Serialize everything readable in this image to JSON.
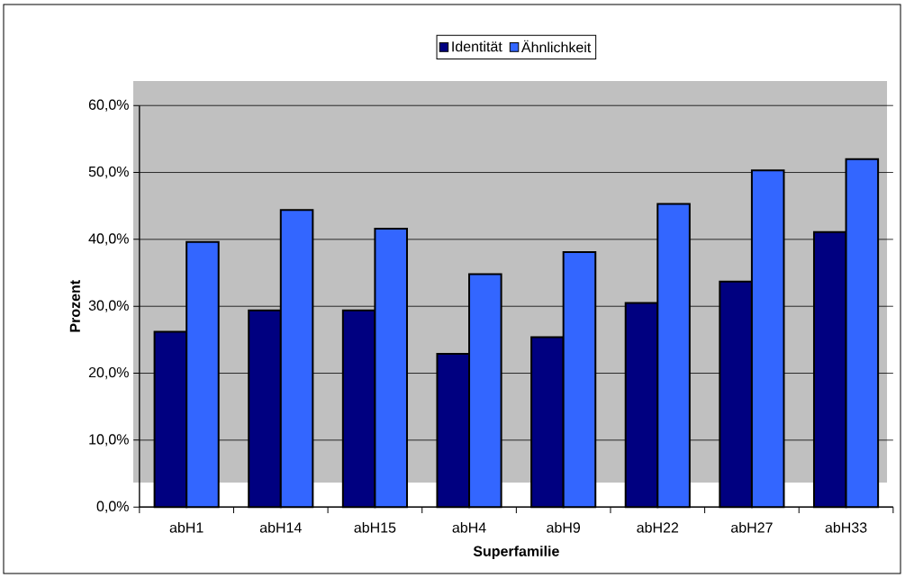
{
  "chart_data": {
    "type": "bar",
    "categories": [
      "abH1",
      "abH14",
      "abH15",
      "abH4",
      "abH9",
      "abH22",
      "abH27",
      "abH33"
    ],
    "series": [
      {
        "name": "Identität",
        "color": "#000080",
        "values": [
          26.2,
          29.4,
          29.4,
          22.9,
          25.4,
          30.5,
          33.7,
          41.1
        ]
      },
      {
        "name": "Ähnlichkeit",
        "color": "#3366ff",
        "values": [
          39.6,
          44.4,
          41.6,
          34.8,
          38.1,
          45.3,
          50.3,
          52.0
        ]
      }
    ],
    "xlabel": "Superfamilie",
    "ylabel": "Prozent",
    "ylim": [
      0,
      60
    ],
    "yticks": [
      {
        "value": 0,
        "label": "0,0%"
      },
      {
        "value": 10,
        "label": "10,0%"
      },
      {
        "value": 20,
        "label": "20,0%"
      },
      {
        "value": 30,
        "label": "30,0%"
      },
      {
        "value": 40,
        "label": "40,0%"
      },
      {
        "value": 50,
        "label": "50,0%"
      },
      {
        "value": 60,
        "label": "60,0%"
      }
    ],
    "grid": "y",
    "legend": "top"
  }
}
